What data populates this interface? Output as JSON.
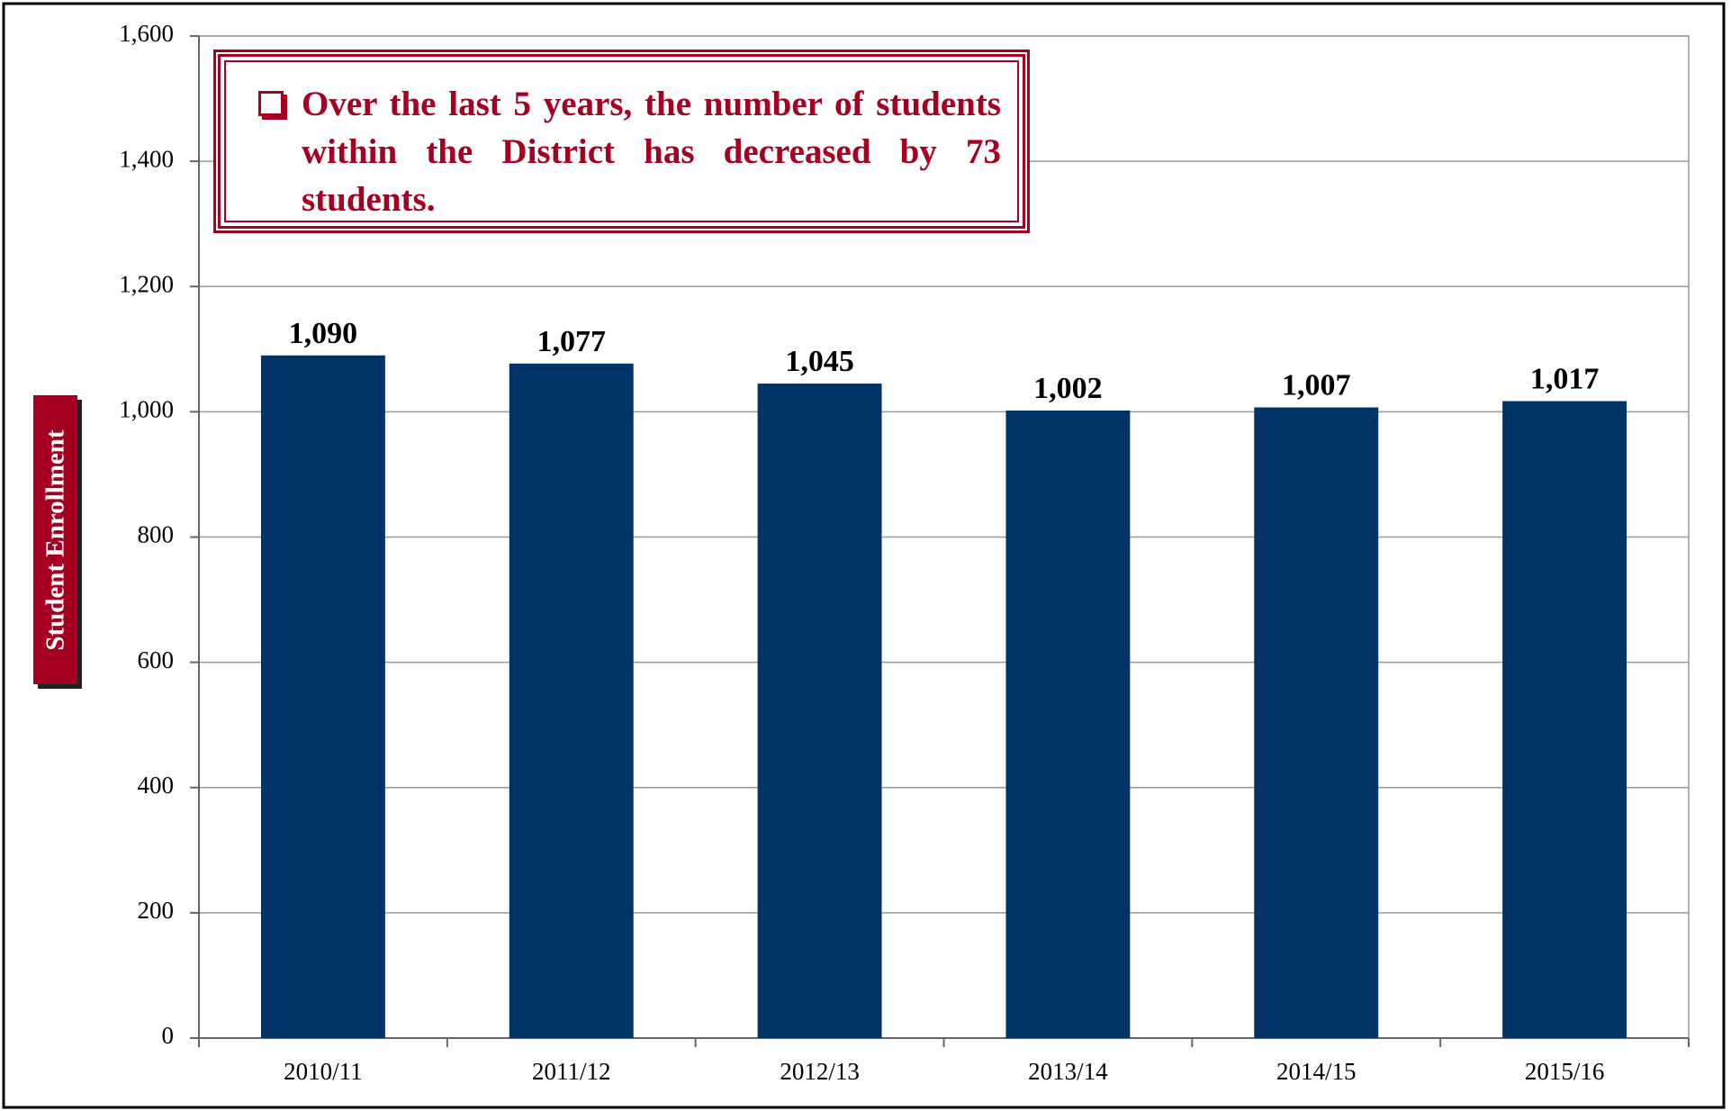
{
  "chart_data": {
    "type": "bar",
    "y_label": "Student Enrollment",
    "annotation": "Over the last 5 years, the number of students within the District has decreased by 73 students.",
    "categories": [
      "2010/11",
      "2011/12",
      "2012/13",
      "2013/14",
      "2014/15",
      "2015/16"
    ],
    "values": [
      1090,
      1077,
      1045,
      1002,
      1007,
      1017
    ],
    "value_labels": [
      "1,090",
      "1,077",
      "1,045",
      "1,002",
      "1,007",
      "1,017"
    ],
    "color": "#003366",
    "ylim": [
      0,
      1600
    ],
    "yticks": [
      0,
      200,
      400,
      600,
      800,
      {
        "value": 1000,
        "label": "1,000"
      },
      {
        "value": 1200,
        "label": "1,200"
      },
      {
        "value": 1400,
        "label": "1,400"
      },
      {
        "value": 1600,
        "label": "1,600"
      }
    ],
    "grid": true
  }
}
